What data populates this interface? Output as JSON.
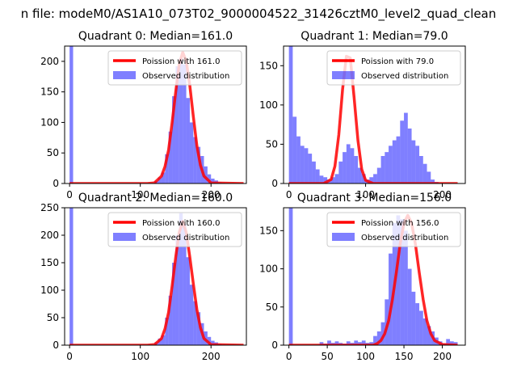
{
  "figure": {
    "suptitle": "n file: modeM0/AS1A10_073T02_9000004522_31426cztM0_level2_quad_clean"
  },
  "colors": {
    "hist": "#0000ff",
    "curve": "#ff0000",
    "axis": "#000000"
  },
  "chart_data": [
    {
      "type": "bar",
      "title": "Quadrant 0: Median=161.0",
      "xlim": [
        -7,
        250
      ],
      "ylim": [
        0,
        225
      ],
      "xticks": [
        0,
        100,
        200
      ],
      "yticks": [
        0,
        50,
        100,
        150,
        200
      ],
      "bin_edges": [
        0,
        5,
        10,
        15,
        20,
        25,
        30,
        35,
        40,
        45,
        50,
        55,
        60,
        65,
        70,
        75,
        80,
        85,
        90,
        95,
        100,
        105,
        110,
        115,
        120,
        125,
        130,
        135,
        140,
        145,
        150,
        155,
        160,
        165,
        170,
        175,
        180,
        185,
        190,
        195,
        200,
        205,
        210,
        215,
        220,
        225,
        230,
        235,
        240,
        245
      ],
      "counts": [
        225,
        0,
        0,
        0,
        0,
        0,
        0,
        0,
        0,
        0,
        0,
        0,
        0,
        0,
        0,
        0,
        0,
        0,
        0,
        0,
        0,
        0,
        0,
        0,
        4,
        10,
        18,
        48,
        85,
        143,
        192,
        205,
        195,
        140,
        100,
        76,
        60,
        45,
        28,
        15,
        8,
        5,
        2,
        1,
        0,
        0,
        0,
        0,
        0
      ],
      "curve": {
        "x": [
          0,
          110,
          120,
          130,
          135,
          140,
          145,
          150,
          155,
          160,
          165,
          170,
          175,
          180,
          185,
          190,
          200,
          246
        ],
        "y": [
          0,
          0,
          1,
          12,
          28,
          55,
          100,
          150,
          195,
          215,
          200,
          160,
          110,
          62,
          30,
          12,
          1,
          0
        ]
      },
      "legend": [
        "Poission with 161.0",
        "Observed distribution"
      ]
    },
    {
      "type": "bar",
      "title": "Quadrant 1: Median=79.0",
      "xlim": [
        -7,
        230
      ],
      "ylim": [
        0,
        175
      ],
      "xticks": [
        0,
        100,
        200
      ],
      "yticks": [
        0,
        50,
        100,
        150
      ],
      "bin_edges": [
        0,
        5,
        10,
        15,
        20,
        25,
        30,
        35,
        40,
        45,
        50,
        55,
        60,
        65,
        70,
        75,
        80,
        85,
        90,
        95,
        100,
        105,
        110,
        115,
        120,
        125,
        130,
        135,
        140,
        145,
        150,
        155,
        160,
        165,
        170,
        175,
        180,
        185,
        190,
        195,
        200,
        205,
        210,
        215,
        220,
        225
      ],
      "counts": [
        175,
        85,
        60,
        48,
        45,
        38,
        28,
        18,
        10,
        8,
        5,
        8,
        12,
        28,
        40,
        50,
        45,
        35,
        20,
        12,
        5,
        8,
        12,
        20,
        35,
        40,
        48,
        55,
        60,
        80,
        90,
        70,
        55,
        48,
        35,
        25,
        15,
        5,
        2,
        0,
        0,
        0,
        0,
        0,
        0
      ],
      "curve": {
        "x": [
          0,
          45,
          55,
          60,
          65,
          70,
          75,
          80,
          85,
          90,
          95,
          100,
          110,
          220
        ],
        "y": [
          0,
          0,
          5,
          22,
          62,
          120,
          162,
          160,
          110,
          55,
          18,
          4,
          0,
          0
        ]
      },
      "legend": [
        "Poission with 79.0",
        "Observed distribution"
      ]
    },
    {
      "type": "bar",
      "title": "Quadrant 2: Median=160.0",
      "xlim": [
        -7,
        250
      ],
      "ylim": [
        0,
        250
      ],
      "xticks": [
        0,
        100,
        200
      ],
      "yticks": [
        0,
        50,
        100,
        150,
        200,
        250
      ],
      "bin_edges": [
        0,
        5,
        10,
        15,
        20,
        25,
        30,
        35,
        40,
        45,
        50,
        55,
        60,
        65,
        70,
        75,
        80,
        85,
        90,
        95,
        100,
        105,
        110,
        115,
        120,
        125,
        130,
        135,
        140,
        145,
        150,
        155,
        160,
        165,
        170,
        175,
        180,
        185,
        190,
        195,
        200,
        205,
        210,
        215,
        220,
        225,
        230,
        235,
        240,
        245
      ],
      "counts": [
        250,
        0,
        0,
        0,
        0,
        0,
        0,
        0,
        0,
        0,
        0,
        0,
        0,
        0,
        0,
        0,
        0,
        0,
        0,
        0,
        0,
        0,
        0,
        0,
        5,
        12,
        18,
        50,
        90,
        150,
        200,
        240,
        220,
        160,
        110,
        80,
        60,
        40,
        25,
        15,
        8,
        5,
        2,
        1,
        0,
        0,
        0,
        0,
        0
      ],
      "curve": {
        "x": [
          0,
          110,
          120,
          130,
          135,
          140,
          145,
          150,
          155,
          160,
          165,
          170,
          175,
          180,
          185,
          190,
          200,
          246
        ],
        "y": [
          0,
          0,
          1,
          12,
          30,
          60,
          108,
          160,
          205,
          225,
          205,
          160,
          112,
          65,
          32,
          12,
          1,
          0
        ]
      },
      "legend": [
        "Poission with 160.0",
        "Observed distribution"
      ]
    },
    {
      "type": "bar",
      "title": "Quadrant 3: Median=156.0",
      "xlim": [
        -7,
        230
      ],
      "ylim": [
        0,
        180
      ],
      "xticks": [
        0,
        50,
        100,
        150,
        200
      ],
      "yticks": [
        0,
        50,
        100,
        150
      ],
      "bin_edges": [
        0,
        5,
        10,
        15,
        20,
        25,
        30,
        35,
        40,
        45,
        50,
        55,
        60,
        65,
        70,
        75,
        80,
        85,
        90,
        95,
        100,
        105,
        110,
        115,
        120,
        125,
        130,
        135,
        140,
        145,
        150,
        155,
        160,
        165,
        170,
        175,
        180,
        185,
        190,
        195,
        200,
        205,
        210,
        215,
        220
      ],
      "counts": [
        180,
        0,
        0,
        0,
        0,
        0,
        0,
        0,
        4,
        2,
        6,
        3,
        5,
        3,
        2,
        5,
        3,
        6,
        4,
        6,
        3,
        4,
        12,
        18,
        30,
        60,
        120,
        160,
        170,
        165,
        150,
        100,
        70,
        55,
        45,
        35,
        25,
        18,
        10,
        5,
        2,
        8,
        5,
        4
      ],
      "curve": {
        "x": [
          0,
          110,
          115,
          120,
          125,
          130,
          135,
          140,
          145,
          150,
          155,
          160,
          165,
          170,
          175,
          180,
          185,
          190,
          200,
          220
        ],
        "y": [
          0,
          0,
          2,
          6,
          15,
          32,
          60,
          95,
          132,
          160,
          170,
          160,
          132,
          95,
          60,
          32,
          15,
          6,
          1,
          0
        ]
      },
      "legend": [
        "Poission with 156.0",
        "Observed distribution"
      ]
    }
  ]
}
